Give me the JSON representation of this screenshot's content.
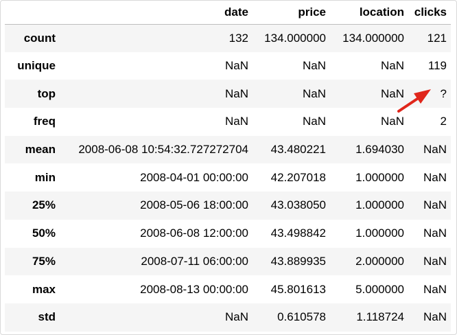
{
  "table": {
    "columns": [
      "date",
      "price",
      "location",
      "clicks"
    ],
    "rows": [
      {
        "label": "count",
        "cells": [
          "132",
          "134.000000",
          "134.000000",
          "121"
        ]
      },
      {
        "label": "unique",
        "cells": [
          "NaN",
          "NaN",
          "NaN",
          "119"
        ]
      },
      {
        "label": "top",
        "cells": [
          "NaN",
          "NaN",
          "NaN",
          "?"
        ]
      },
      {
        "label": "freq",
        "cells": [
          "NaN",
          "NaN",
          "NaN",
          "2"
        ]
      },
      {
        "label": "mean",
        "cells": [
          "2008-06-08 10:54:32.727272704",
          "43.480221",
          "1.694030",
          "NaN"
        ]
      },
      {
        "label": "min",
        "cells": [
          "2008-04-01 00:00:00",
          "42.207018",
          "1.000000",
          "NaN"
        ]
      },
      {
        "label": "25%",
        "cells": [
          "2008-05-06 18:00:00",
          "43.038050",
          "1.000000",
          "NaN"
        ]
      },
      {
        "label": "50%",
        "cells": [
          "2008-06-08 12:00:00",
          "43.498842",
          "1.000000",
          "NaN"
        ]
      },
      {
        "label": "75%",
        "cells": [
          "2008-07-11 06:00:00",
          "43.889935",
          "2.000000",
          "NaN"
        ]
      },
      {
        "label": "max",
        "cells": [
          "2008-08-13 00:00:00",
          "45.801613",
          "5.000000",
          "NaN"
        ]
      },
      {
        "label": "std",
        "cells": [
          "NaN",
          "0.610578",
          "1.118724",
          "NaN"
        ]
      }
    ]
  },
  "annotation": {
    "arrow_color": "#e0261b"
  }
}
